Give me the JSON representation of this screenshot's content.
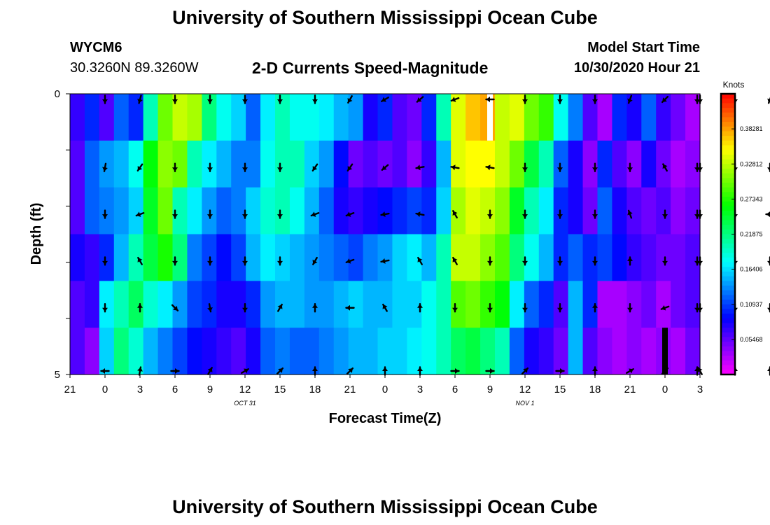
{
  "header": {
    "title": "University of Southern Mississippi Ocean Cube",
    "station": "WYCM6",
    "coords": "30.3260N 89.3260W",
    "subtitle": "2-D Currents Speed-Magnitude",
    "model_start_label": "Model Start Time",
    "model_start_value": "10/30/2020 Hour 21"
  },
  "footer": {
    "title": "University of Southern Mississippi Ocean Cube"
  },
  "chart_data": {
    "type": "heatmap",
    "xlabel": "Forecast Time(Z)",
    "ylabel": "Depth (ft)",
    "x_tick_labels": [
      "21",
      "0",
      "3",
      "6",
      "9",
      "12",
      "15",
      "18",
      "21",
      "0",
      "3",
      "6",
      "9",
      "12",
      "15",
      "18",
      "21",
      "0",
      "3"
    ],
    "date_labels": [
      {
        "text": "OCT 31",
        "hour_index": 5
      },
      {
        "text": "NOV 1",
        "hour_index": 13
      }
    ],
    "y_tick_labels": [
      "0",
      "5"
    ],
    "ylim": [
      0,
      5
    ],
    "hours_per_tick": 3,
    "total_hours": 54,
    "colorbar": {
      "unit": "Knots",
      "min": 0.0,
      "max": 0.4375,
      "tick_values": [
        0.05468,
        0.10937,
        0.16406,
        0.21875,
        0.27343,
        0.32812,
        0.38281
      ],
      "tick_labels": [
        "0.05468",
        "0.10937",
        "0.16406",
        "0.21875",
        "0.27343",
        "0.32812",
        "0.38281"
      ]
    },
    "speed_rows": [
      [
        0.07,
        0.1,
        0.06,
        0.12,
        0.1,
        0.2,
        0.3,
        0.33,
        0.32,
        0.22,
        0.18,
        0.16,
        0.12,
        0.17,
        0.2,
        0.18,
        0.18,
        0.17,
        0.15,
        0.14,
        0.08,
        0.1,
        0.06,
        0.05,
        0.1,
        0.2,
        0.34,
        0.37,
        0.38,
        0.33,
        0.34,
        0.3,
        0.28,
        0.18,
        0.13,
        0.06,
        0.03,
        0.1,
        0.08,
        0.12,
        0.07,
        0.05,
        0.03
      ],
      [
        0.06,
        0.12,
        0.14,
        0.15,
        0.18,
        0.26,
        0.31,
        0.3,
        0.2,
        0.17,
        0.15,
        0.13,
        0.13,
        0.18,
        0.2,
        0.2,
        0.16,
        0.14,
        0.09,
        0.05,
        0.06,
        0.05,
        0.06,
        0.04,
        0.07,
        0.15,
        0.34,
        0.35,
        0.35,
        0.33,
        0.3,
        0.24,
        0.2,
        0.12,
        0.08,
        0.04,
        0.1,
        0.06,
        0.04,
        0.08,
        0.05,
        0.03,
        0.04
      ],
      [
        0.06,
        0.12,
        0.13,
        0.14,
        0.16,
        0.25,
        0.3,
        0.2,
        0.17,
        0.14,
        0.12,
        0.13,
        0.16,
        0.19,
        0.2,
        0.18,
        0.15,
        0.12,
        0.08,
        0.07,
        0.08,
        0.09,
        0.1,
        0.11,
        0.1,
        0.16,
        0.32,
        0.34,
        0.33,
        0.31,
        0.25,
        0.2,
        0.17,
        0.1,
        0.08,
        0.05,
        0.12,
        0.08,
        0.06,
        0.05,
        0.06,
        0.04,
        0.05
      ],
      [
        0.08,
        0.07,
        0.1,
        0.15,
        0.2,
        0.24,
        0.27,
        0.22,
        0.13,
        0.11,
        0.09,
        0.11,
        0.15,
        0.17,
        0.16,
        0.15,
        0.14,
        0.13,
        0.12,
        0.11,
        0.13,
        0.14,
        0.16,
        0.17,
        0.15,
        0.2,
        0.33,
        0.33,
        0.31,
        0.29,
        0.22,
        0.18,
        0.15,
        0.1,
        0.12,
        0.1,
        0.11,
        0.09,
        0.07,
        0.06,
        0.05,
        0.05,
        0.06
      ],
      [
        0.06,
        0.07,
        0.17,
        0.2,
        0.23,
        0.19,
        0.17,
        0.14,
        0.11,
        0.1,
        0.08,
        0.08,
        0.1,
        0.14,
        0.15,
        0.15,
        0.14,
        0.14,
        0.15,
        0.16,
        0.15,
        0.15,
        0.16,
        0.16,
        0.18,
        0.2,
        0.29,
        0.3,
        0.28,
        0.26,
        0.17,
        0.12,
        0.1,
        0.06,
        0.15,
        0.1,
        0.03,
        0.03,
        0.04,
        0.05,
        0.03,
        0.05,
        0.06
      ],
      [
        0.06,
        0.04,
        0.16,
        0.22,
        0.19,
        0.15,
        0.13,
        0.11,
        0.09,
        0.08,
        0.07,
        0.06,
        0.08,
        0.12,
        0.13,
        0.12,
        0.12,
        0.13,
        0.14,
        0.15,
        0.15,
        0.16,
        0.16,
        0.17,
        0.18,
        0.2,
        0.23,
        0.24,
        0.22,
        0.2,
        0.12,
        0.08,
        0.07,
        0.05,
        0.15,
        0.06,
        0.04,
        0.03,
        0.04,
        0.03,
        0.04,
        0.03,
        0.05
      ]
    ],
    "arrow_angles_deg": [
      [
        180,
        195,
        180,
        180,
        180,
        180,
        180,
        210,
        240,
        230,
        250,
        270,
        180,
        180,
        180,
        200,
        225,
        180,
        180,
        200,
        180
      ],
      [
        190,
        215,
        180,
        180,
        180,
        180,
        215,
        215,
        230,
        260,
        280,
        280,
        180,
        180,
        180,
        180,
        330,
        180,
        180,
        180,
        180
      ],
      [
        180,
        250,
        180,
        180,
        180,
        180,
        250,
        250,
        260,
        280,
        330,
        180,
        180,
        180,
        180,
        340,
        180,
        180,
        180,
        270,
        180
      ],
      [
        180,
        330,
        180,
        180,
        180,
        180,
        210,
        250,
        260,
        330,
        330,
        180,
        180,
        180,
        180,
        0,
        180,
        180,
        180,
        180,
        180
      ],
      [
        180,
        0,
        135,
        170,
        180,
        30,
        0,
        270,
        330,
        0,
        180,
        180,
        180,
        180,
        0,
        180,
        250,
        180,
        180,
        180,
        180
      ],
      [
        270,
        10,
        90,
        30,
        60,
        45,
        0,
        45,
        0,
        0,
        90,
        90,
        45,
        90,
        0,
        60,
        45,
        330,
        0,
        0,
        0
      ]
    ],
    "missing_cells": [
      {
        "row": 0,
        "hour": 36.0,
        "color": "#ffffff"
      },
      {
        "row": 5,
        "hour": 51.0,
        "color": "#000000"
      }
    ]
  }
}
